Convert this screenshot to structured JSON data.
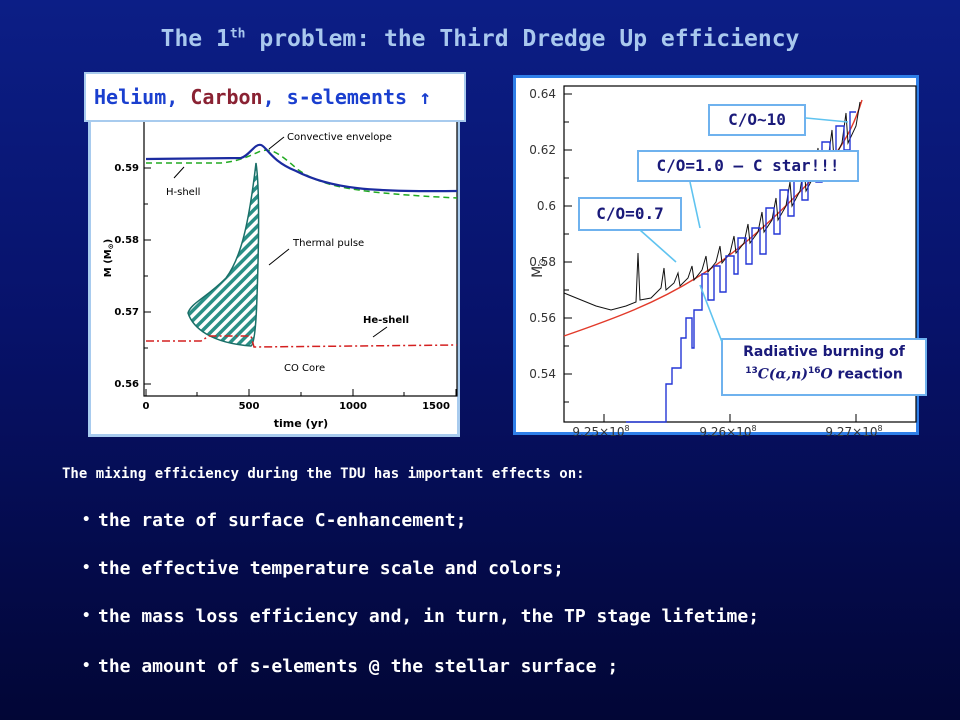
{
  "title": {
    "prefix": "The 1",
    "sup": "th",
    "rest": " problem: the Third Dredge Up efficiency"
  },
  "legend": {
    "helium": "Helium,",
    "carbon": "Carbon",
    "rest": ", s-elements",
    "arrow": "↑"
  },
  "left_chart": {
    "annotations": {
      "convective_envelope": "Convective envelope",
      "h_shell": "H-shell",
      "thermal_pulse": "Thermal pulse",
      "he_shell": "He-shell",
      "co_core": "CO Core"
    },
    "ylabel": "M (M",
    "ylabel_sub": "⊙",
    "ylabel_close": ")",
    "xlabel": "time (yr)",
    "y_ticks": [
      "0.59",
      "0.58",
      "0.57",
      "0.56"
    ],
    "x_ticks": [
      "0",
      "500",
      "1000",
      "1500"
    ]
  },
  "right_chart": {
    "ylabel": "M",
    "ylabel_sub": "⊙",
    "y_ticks": [
      "0.64",
      "0.62",
      "0.6",
      "0.58",
      "0.56",
      "0.54"
    ],
    "x_ticks": [
      "9.25×10",
      "9.26×10",
      "9.27×10"
    ],
    "x_tick_exp": "8",
    "callouts": {
      "co10": "C/O~10",
      "co1": "C/O=1.0 – C star!!!",
      "co07": "C/O=0.7",
      "rad_line1": "Radiative burning of",
      "rad_sup1": "13",
      "rad_c": "C(α,n)",
      "rad_sup2": "16",
      "rad_o": "O",
      "rad_rest": " reaction"
    }
  },
  "intro": "The mixing efficiency during the TDU has important effects on:",
  "bullet_char": "•",
  "bullets": [
    "the rate of surface C-enhancement;",
    "the effective temperature scale and colors;",
    "the mass loss efficiency and, in turn, the TP stage lifetime;",
    "the amount of s-elements @ the stellar surface ;"
  ]
}
